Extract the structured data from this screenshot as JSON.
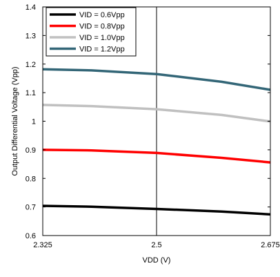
{
  "chart_data": {
    "type": "line",
    "title": "",
    "xlabel": "VDD (V)",
    "ylabel": "Output Differential Voltage (Vpp)",
    "xlim": [
      2.325,
      2.675
    ],
    "ylim": [
      0.6,
      1.4
    ],
    "x_ticks": [
      {
        "value": 2.325,
        "label": "2.325"
      },
      {
        "value": 2.5,
        "label": "2.5"
      },
      {
        "value": 2.675,
        "label": "2.675"
      }
    ],
    "y_ticks": [
      {
        "value": 0.6,
        "label": "0.6"
      },
      {
        "value": 0.7,
        "label": "0.7"
      },
      {
        "value": 0.8,
        "label": "0.8"
      },
      {
        "value": 0.9,
        "label": "0.9"
      },
      {
        "value": 1.0,
        "label": "1"
      },
      {
        "value": 1.1,
        "label": "1.1"
      },
      {
        "value": 1.2,
        "label": "1.2"
      },
      {
        "value": 1.3,
        "label": "1.3"
      },
      {
        "value": 1.4,
        "label": "1.4"
      }
    ],
    "grid": "major lines at x = 2.5 and y = 1.4",
    "legend_position": "top-left",
    "series": [
      {
        "name": "VID = 0.6Vpp",
        "color": "#000000",
        "x": [
          2.325,
          2.4,
          2.5,
          2.6,
          2.675
        ],
        "y": [
          0.704,
          0.701,
          0.693,
          0.684,
          0.674
        ]
      },
      {
        "name": "VID = 0.8Vpp",
        "color": "#ff0000",
        "x": [
          2.325,
          2.4,
          2.5,
          2.6,
          2.675
        ],
        "y": [
          0.9,
          0.898,
          0.889,
          0.872,
          0.856
        ]
      },
      {
        "name": "VID = 1.0Vpp",
        "color": "#c0c0c0",
        "x": [
          2.325,
          2.4,
          2.5,
          2.6,
          2.675
        ],
        "y": [
          1.057,
          1.053,
          1.042,
          1.022,
          0.999
        ]
      },
      {
        "name": "VID = 1.2Vpp",
        "color": "#336677",
        "x": [
          2.325,
          2.4,
          2.5,
          2.6,
          2.675
        ],
        "y": [
          1.182,
          1.178,
          1.165,
          1.138,
          1.11
        ]
      }
    ]
  }
}
